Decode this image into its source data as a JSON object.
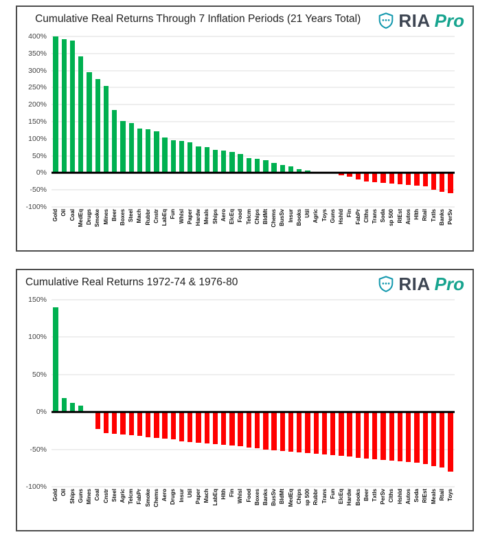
{
  "logo": {
    "brand": "RIA",
    "suffix": "Pro"
  },
  "colors": {
    "positive_bar": "#00b050",
    "negative_bar": "#ff0000",
    "zero_line": "#000000",
    "gridline": "#dcdcdc",
    "panel_border": "#4d4d4d",
    "axis_text": "#404040",
    "title_text": "#1f1f1f",
    "logo_ria": "#3d4552",
    "logo_pro": "#17a48f",
    "logo_shield": "#1599ae"
  },
  "chart_data": [
    {
      "type": "bar",
      "title": "Cumulative Real Returns Through 7 Inflation Periods (21 Years Total)",
      "xlabel": "",
      "ylabel": "",
      "ylim": [
        -100,
        400
      ],
      "ytick_step": 50,
      "ytick_labels": [
        "400%",
        "350%",
        "300%",
        "250%",
        "200%",
        "150%",
        "100%",
        "50%",
        "0%",
        "-50%",
        "-100%"
      ],
      "grid": true,
      "legend": false,
      "categories": [
        "Gold",
        "Oil",
        "Coal",
        "MedEq",
        "Drugs",
        "Smoke",
        "Mines",
        "Beer",
        "Boxes",
        "Steel",
        "Mach",
        "Rubbr",
        "Cnstr",
        "LabEq",
        "Fun",
        "Whlsl",
        "Paper",
        "Hardw",
        "Meals",
        "Ships",
        "Aero",
        "ElcEq",
        "Food",
        "Telcm",
        "Chips",
        "BldMt",
        "Chems",
        "BusSv",
        "Insur",
        "Books",
        "Util",
        "Agric",
        "Toys",
        "Guns",
        "Hshld",
        "Fin",
        "FabPr",
        "Clths",
        "Trans",
        "Soda",
        "sp 500",
        "RlEst",
        "Autos",
        "Hlth",
        "Rtail",
        "Txtls",
        "Banks",
        "PerSv"
      ],
      "values": [
        400,
        392,
        388,
        342,
        296,
        274,
        254,
        185,
        152,
        145,
        130,
        127,
        121,
        103,
        96,
        93,
        89,
        78,
        76,
        67,
        65,
        61,
        56,
        44,
        41,
        37,
        30,
        23,
        18,
        11,
        6,
        2,
        0,
        -1,
        -7,
        -12,
        -19,
        -25,
        -28,
        -30,
        -32,
        -33,
        -35,
        -37,
        -39,
        -50,
        -55,
        -60
      ]
    },
    {
      "type": "bar",
      "title": "Cumulative Real Returns 1972-74 & 1976-80",
      "xlabel": "",
      "ylabel": "",
      "ylim": [
        -100,
        150
      ],
      "ytick_step": 50,
      "ytick_labels": [
        "150%",
        "100%",
        "50%",
        "0%",
        "-50%",
        "-100%"
      ],
      "grid": true,
      "legend": false,
      "categories": [
        "Gold",
        "Oil",
        "Ships",
        "Guns",
        "Mines",
        "Coal",
        "Cnstr",
        "Steel",
        "Agric",
        "Telcm",
        "FabPr",
        "Smoke",
        "Chems",
        "Aero",
        "Drugs",
        "Insur",
        "Util",
        "Paper",
        "Mach",
        "LabEq",
        "Hlth",
        "Fin",
        "Whlsl",
        "Food",
        "Boxes",
        "Banks",
        "BusSv",
        "BldMt",
        "MedEq",
        "Chips",
        "sp 500",
        "Rubbr",
        "Trans",
        "Fun",
        "ElcEq",
        "Hardw",
        "Books",
        "Beer",
        "Txtls",
        "PerSv",
        "Clths",
        "Hshld",
        "Autos",
        "Soda",
        "RlEst",
        "Meals",
        "Rtail",
        "Toys"
      ],
      "values": [
        140,
        19,
        12,
        8,
        -1,
        -23,
        -28,
        -29,
        -30,
        -31,
        -32,
        -34,
        -35,
        -36,
        -37,
        -39,
        -40,
        -41,
        -42,
        -43,
        -44,
        -45,
        -46,
        -48,
        -49,
        -50,
        -51,
        -52,
        -53,
        -54,
        -55,
        -56,
        -57,
        -58,
        -59,
        -60,
        -61,
        -62,
        -63,
        -64,
        -65,
        -66,
        -67,
        -68,
        -70,
        -72,
        -74,
        -80
      ]
    }
  ]
}
